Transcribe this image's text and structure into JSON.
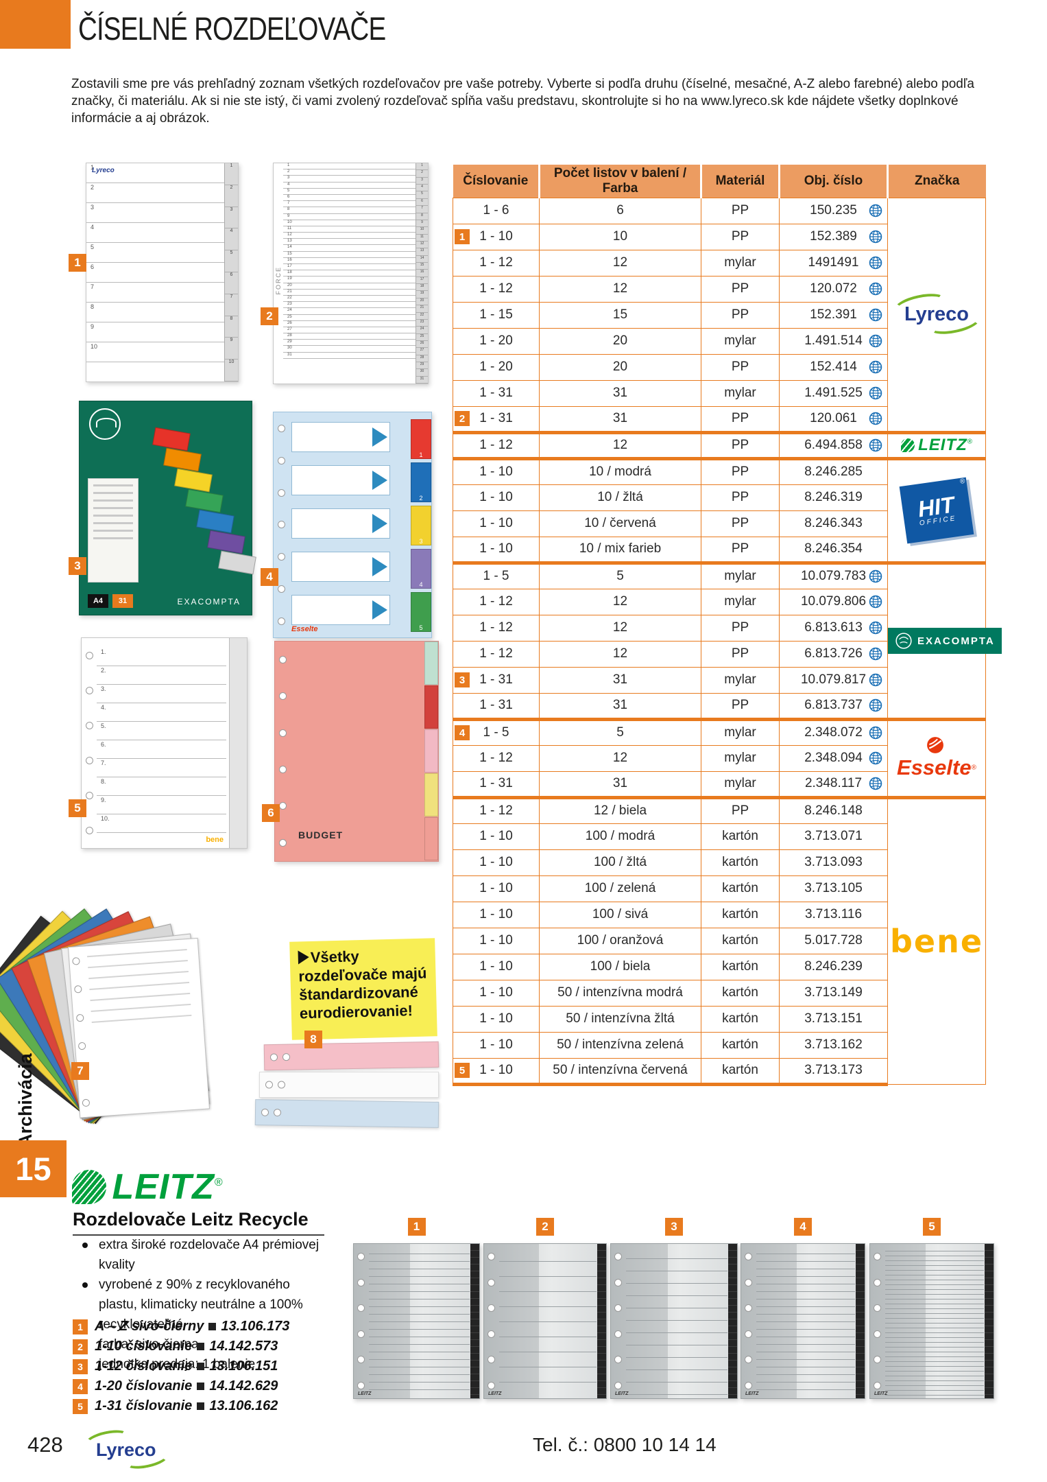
{
  "page_title": "ČÍSELNÉ ROZDEĽOVAČE",
  "intro": "Zostavili sme pre vás prehľadný zoznam všetkých rozdeľovačov pre vaše potreby. Vyberte si podľa druhu (číselné, mesačné, A-Z alebo farebné) alebo podľa značky, či materiálu. Ak si nie ste istý, či vami zvolený rozdeľovač spĺňa vašu predstavu, skontrolujte si ho na www.lyreco.sk kde nájdete všetky doplnkové informácie a aj obrázok.",
  "sidebar": {
    "vertical_label": "Archivácia",
    "chapter_tab": "15"
  },
  "footer": {
    "page_number": "428",
    "lyreco_logo": "Lyreco",
    "phone": "Tel. č.: 0800 10 14 14"
  },
  "colors": {
    "orange": "#E87A1E",
    "table_header": "#EC9C61",
    "leitz_green": "#00A03C",
    "exacompta_green": "#00795F",
    "esselte_red": "#E8380D",
    "hit_blue": "#1058A4",
    "lyreco_blue": "#243E90",
    "lyreco_green": "#7AB829",
    "bene_yellow": "#F9B000",
    "callout_yellow": "#F8EE55",
    "globe_blue": "#1A6FB5"
  },
  "callout": {
    "text": "Všetky rozdeľovače majú štandardizované eurodierovanie!"
  },
  "table": {
    "headers": [
      "Číslovanie",
      "Počet listov v balení / Farba",
      "Materiál",
      "Obj. číslo",
      "Značka"
    ],
    "sections": [
      {
        "brand": "lyreco",
        "rows": [
          {
            "c": "1 - 6",
            "p": "6",
            "m": "PP",
            "o": "150.235",
            "g": true
          },
          {
            "badge": "1",
            "c": "1 - 10",
            "p": "10",
            "m": "PP",
            "o": "152.389",
            "g": true
          },
          {
            "c": "1 - 12",
            "p": "12",
            "m": "mylar",
            "o": "1491491",
            "g": true
          },
          {
            "c": "1 - 12",
            "p": "12",
            "m": "PP",
            "o": "120.072",
            "g": true
          },
          {
            "c": "1 - 15",
            "p": "15",
            "m": "PP",
            "o": "152.391",
            "g": true
          },
          {
            "c": "1 - 20",
            "p": "20",
            "m": "mylar",
            "o": "1.491.514",
            "g": true
          },
          {
            "c": "1 - 20",
            "p": "20",
            "m": "PP",
            "o": "152.414",
            "g": true
          },
          {
            "c": "1 - 31",
            "p": "31",
            "m": "mylar",
            "o": "1.491.525",
            "g": true
          },
          {
            "badge": "2",
            "c": "1 - 31",
            "p": "31",
            "m": "PP",
            "o": "120.061",
            "g": true
          }
        ]
      },
      {
        "brand": "leitz",
        "rows": [
          {
            "c": "1 - 12",
            "p": "12",
            "m": "PP",
            "o": "6.494.858",
            "g": true
          }
        ]
      },
      {
        "brand": "hit",
        "rows": [
          {
            "c": "1 - 10",
            "p": "10 / modrá",
            "m": "PP",
            "o": "8.246.285",
            "g": false
          },
          {
            "c": "1 - 10",
            "p": "10 / žltá",
            "m": "PP",
            "o": "8.246.319",
            "g": false
          },
          {
            "c": "1 - 10",
            "p": "10 / červená",
            "m": "PP",
            "o": "8.246.343",
            "g": false
          },
          {
            "c": "1 - 10",
            "p": "10 / mix farieb",
            "m": "PP",
            "o": "8.246.354",
            "g": false
          }
        ]
      },
      {
        "brand": "exacompta",
        "rows": [
          {
            "c": "1 - 5",
            "p": "5",
            "m": "mylar",
            "o": "10.079.783",
            "g": true
          },
          {
            "c": "1 - 12",
            "p": "12",
            "m": "mylar",
            "o": "10.079.806",
            "g": true
          },
          {
            "c": "1 - 12",
            "p": "12",
            "m": "PP",
            "o": "6.813.613",
            "g": true
          },
          {
            "c": "1 - 12",
            "p": "12",
            "m": "PP",
            "o": "6.813.726",
            "g": true
          },
          {
            "badge": "3",
            "c": "1 - 31",
            "p": "31",
            "m": "mylar",
            "o": "10.079.817",
            "g": true
          },
          {
            "c": "1 - 31",
            "p": "31",
            "m": "PP",
            "o": "6.813.737",
            "g": true
          }
        ]
      },
      {
        "brand": "esselte",
        "rows": [
          {
            "badge": "4",
            "c": "1 - 5",
            "p": "5",
            "m": "mylar",
            "o": "2.348.072",
            "g": true
          },
          {
            "c": "1 - 12",
            "p": "12",
            "m": "mylar",
            "o": "2.348.094",
            "g": true
          },
          {
            "c": "1 - 31",
            "p": "31",
            "m": "mylar",
            "o": "2.348.117",
            "g": true
          }
        ]
      },
      {
        "brand": "bene",
        "rows": [
          {
            "c": "1 - 12",
            "p": "12 / biela",
            "m": "PP",
            "o": "8.246.148",
            "g": false
          },
          {
            "c": "1 - 10",
            "p": "100 / modrá",
            "m": "kartón",
            "o": "3.713.071",
            "g": false
          },
          {
            "c": "1 - 10",
            "p": "100 / žltá",
            "m": "kartón",
            "o": "3.713.093",
            "g": false
          },
          {
            "c": "1 - 10",
            "p": "100 / zelená",
            "m": "kartón",
            "o": "3.713.105",
            "g": false
          },
          {
            "c": "1 - 10",
            "p": "100 / sivá",
            "m": "kartón",
            "o": "3.713.116",
            "g": false
          },
          {
            "c": "1 - 10",
            "p": "100 / oranžová",
            "m": "kartón",
            "o": "5.017.728",
            "g": false
          },
          {
            "c": "1 - 10",
            "p": "100 / biela",
            "m": "kartón",
            "o": "8.246.239",
            "g": false
          },
          {
            "c": "1 - 10",
            "p": "50 / intenzívna modrá",
            "m": "kartón",
            "o": "3.713.149",
            "g": false
          },
          {
            "c": "1 - 10",
            "p": "50 / intenzívna žltá",
            "m": "kartón",
            "o": "3.713.151",
            "g": false
          },
          {
            "c": "1 - 10",
            "p": "50 / intenzívna zelená",
            "m": "kartón",
            "o": "3.713.162",
            "g": false
          },
          {
            "badge": "5",
            "c": "1 - 10",
            "p": "50 / intenzívna červená",
            "m": "kartón",
            "o": "3.713.173",
            "g": false
          }
        ]
      }
    ]
  },
  "brand_logos": {
    "lyreco": "Lyreco",
    "leitz": "LEITZ",
    "hit": "HIT",
    "hit_sub": "OFFICE",
    "exacompta": "EXACOMPTA",
    "esselte": "Esselte",
    "bene": "bene",
    "reg": "®"
  },
  "product_images": {
    "markers": [
      "1",
      "2",
      "3",
      "4",
      "5",
      "6",
      "7",
      "8"
    ],
    "img1_brand": "Lyreco",
    "img1_tabs": 10,
    "img2_side": "FORCE",
    "img2_tabs": 31,
    "img3_brand": "EXACOMPTA",
    "img3_format": "A4",
    "img3_count": "31",
    "img4_brand": "Esselte",
    "img4_tabs": 5,
    "img5_brand": "bene",
    "img5_tabs": 10,
    "img6_brand": "BUDGET"
  },
  "leitz_promo": {
    "logo": "LEITZ",
    "heading": "Rozdelovače Leitz Recycle",
    "bullets": [
      "extra široké rozdelovače A4 prémiovej kvality",
      "vyrobené z 90% z recyklovaného plastu, klimaticky neutrálne a 100% recyklovateľné",
      "farba: sivo-čierna",
      "jednotka predaja: 1 balenie"
    ],
    "items": [
      {
        "badge": "1",
        "label": "A – Z sivo-čierny",
        "code": "13.106.173"
      },
      {
        "badge": "2",
        "label": "1-10 číslovanie",
        "code": "14.142.573"
      },
      {
        "badge": "3",
        "label": "1-12 číslovanie",
        "code": "13.106.151"
      },
      {
        "badge": "4",
        "label": "1-20 číslovanie",
        "code": "14.142.629"
      },
      {
        "badge": "5",
        "label": "1-31 číslovanie",
        "code": "13.106.162"
      }
    ],
    "bottom_badges": [
      "1",
      "2",
      "3",
      "4",
      "5"
    ],
    "bottom_tab_counts": [
      20,
      10,
      12,
      20,
      31
    ],
    "bottom_brand": "LEITZ"
  }
}
